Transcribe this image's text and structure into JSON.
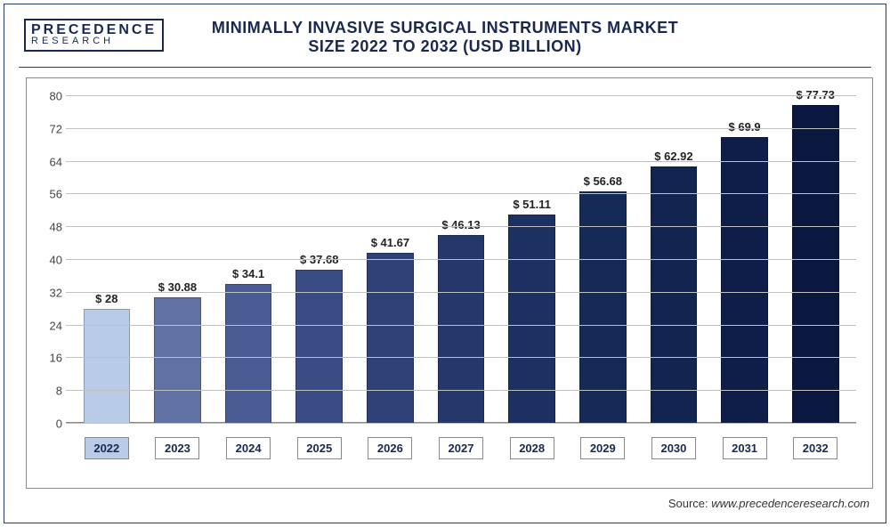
{
  "logo": {
    "line1": "PRECEDENCE",
    "line2": "RESEARCH"
  },
  "title": {
    "line1": "MINIMALLY INVASIVE SURGICAL INSTRUMENTS MARKET",
    "line2": "SIZE 2022 TO 2032 (USD BILLION)"
  },
  "source": {
    "label": "Source:",
    "url": "www.precedenceresearch.com"
  },
  "chart": {
    "type": "bar",
    "ylim": [
      0,
      80
    ],
    "ytick_step": 8,
    "yticks": [
      0,
      8,
      16,
      24,
      32,
      40,
      48,
      56,
      64,
      72,
      80
    ],
    "grid_color": "#c0c0c0",
    "background_color": "#ffffff",
    "border_color": "#888888",
    "bar_width_pct": 66,
    "label_prefix": "$ ",
    "label_fontsize": 13,
    "tick_fontsize": 13,
    "categories": [
      "2022",
      "2023",
      "2024",
      "2025",
      "2026",
      "2027",
      "2028",
      "2029",
      "2030",
      "2031",
      "2032"
    ],
    "values": [
      28,
      30.88,
      34.1,
      37.68,
      41.67,
      46.13,
      51.11,
      56.68,
      62.92,
      69.9,
      77.73
    ],
    "value_labels": [
      "28",
      "30.88",
      "34.1",
      "37.68",
      "41.67",
      "46.13",
      "51.11",
      "56.68",
      "62.92",
      "69.9",
      "77.73"
    ],
    "bar_colors": [
      "#b8cce8",
      "#6072a4",
      "#4a5c94",
      "#3a4c84",
      "#2e4278",
      "#24386c",
      "#1c3062",
      "#162a58",
      "#122450",
      "#0e1e48",
      "#0a1840"
    ],
    "highlight_first_xtick": true,
    "highlight_color": "#b8cce8"
  }
}
